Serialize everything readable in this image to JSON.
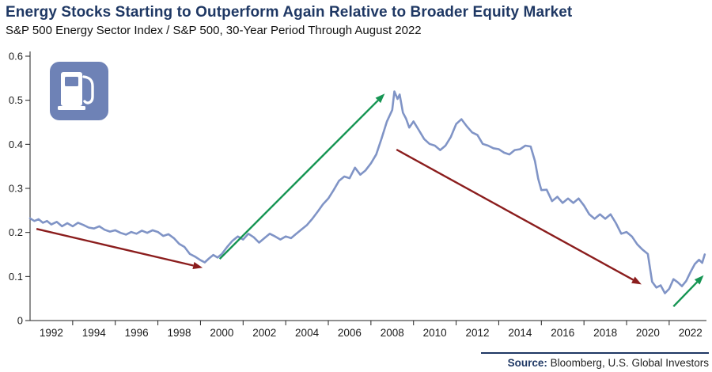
{
  "header": {
    "title": "Energy Stocks Starting to Outperform Again Relative to Broader Equity Market",
    "subtitle": "S&P 500 Energy Sector Index / S&P 500, 30-Year Period Through August 2022"
  },
  "footer": {
    "source_label": "Source:",
    "source_text": " Bloomberg, U.S. Global Investors"
  },
  "colors": {
    "title": "#1f3864",
    "line": "#8094c6",
    "down_arrow": "#8b1d1d",
    "up_arrow": "#169553",
    "icon_bg": "#6e82b6",
    "axis": "#222222"
  },
  "icon": {
    "name": "gas-pump-icon"
  },
  "chart_data": {
    "type": "line",
    "title": "Energy Stocks Starting to Outperform Again Relative to Broader Equity Market",
    "subtitle": "S&P 500 Energy Sector Index / S&P 500, 30-Year Period Through August 2022",
    "xlabel": "",
    "ylabel": "",
    "series_name": "S&P 500 Energy Sector Index / S&P 500",
    "xlim": [
      1991,
      2022.75
    ],
    "ylim": [
      0,
      0.6
    ],
    "yticks": [
      0,
      0.1,
      0.2,
      0.3,
      0.4,
      0.5,
      0.6
    ],
    "xticks": [
      1992,
      1994,
      1996,
      1998,
      2000,
      2002,
      2004,
      2006,
      2008,
      2010,
      2012,
      2014,
      2016,
      2018,
      2020,
      2022
    ],
    "xticks_minor": [
      1993,
      1995,
      1997,
      1999,
      2001,
      2003,
      2005,
      2007,
      2009,
      2011,
      2013,
      2015,
      2017,
      2019,
      2021
    ],
    "grid": false,
    "legend": false,
    "points": [
      [
        1991.0,
        0.232
      ],
      [
        1991.2,
        0.226
      ],
      [
        1991.4,
        0.23
      ],
      [
        1991.6,
        0.222
      ],
      [
        1991.8,
        0.226
      ],
      [
        1992.0,
        0.218
      ],
      [
        1992.25,
        0.224
      ],
      [
        1992.5,
        0.214
      ],
      [
        1992.75,
        0.221
      ],
      [
        1993.0,
        0.214
      ],
      [
        1993.25,
        0.222
      ],
      [
        1993.5,
        0.217
      ],
      [
        1993.75,
        0.211
      ],
      [
        1994.0,
        0.209
      ],
      [
        1994.25,
        0.214
      ],
      [
        1994.5,
        0.206
      ],
      [
        1994.75,
        0.202
      ],
      [
        1995.0,
        0.205
      ],
      [
        1995.25,
        0.199
      ],
      [
        1995.5,
        0.195
      ],
      [
        1995.75,
        0.201
      ],
      [
        1996.0,
        0.197
      ],
      [
        1996.25,
        0.204
      ],
      [
        1996.5,
        0.199
      ],
      [
        1996.75,
        0.205
      ],
      [
        1997.0,
        0.201
      ],
      [
        1997.25,
        0.192
      ],
      [
        1997.5,
        0.196
      ],
      [
        1997.75,
        0.187
      ],
      [
        1998.0,
        0.174
      ],
      [
        1998.25,
        0.167
      ],
      [
        1998.5,
        0.151
      ],
      [
        1998.75,
        0.145
      ],
      [
        1999.0,
        0.137
      ],
      [
        1999.2,
        0.132
      ],
      [
        1999.4,
        0.141
      ],
      [
        1999.6,
        0.149
      ],
      [
        1999.8,
        0.143
      ],
      [
        2000.0,
        0.151
      ],
      [
        2000.25,
        0.167
      ],
      [
        2000.5,
        0.181
      ],
      [
        2000.75,
        0.191
      ],
      [
        2001.0,
        0.184
      ],
      [
        2001.25,
        0.197
      ],
      [
        2001.5,
        0.189
      ],
      [
        2001.75,
        0.177
      ],
      [
        2002.0,
        0.187
      ],
      [
        2002.25,
        0.197
      ],
      [
        2002.5,
        0.191
      ],
      [
        2002.75,
        0.184
      ],
      [
        2003.0,
        0.191
      ],
      [
        2003.25,
        0.187
      ],
      [
        2003.5,
        0.197
      ],
      [
        2003.75,
        0.207
      ],
      [
        2004.0,
        0.217
      ],
      [
        2004.25,
        0.231
      ],
      [
        2004.5,
        0.247
      ],
      [
        2004.75,
        0.264
      ],
      [
        2005.0,
        0.277
      ],
      [
        2005.25,
        0.296
      ],
      [
        2005.5,
        0.317
      ],
      [
        2005.75,
        0.327
      ],
      [
        2006.0,
        0.323
      ],
      [
        2006.25,
        0.347
      ],
      [
        2006.5,
        0.331
      ],
      [
        2006.75,
        0.341
      ],
      [
        2007.0,
        0.357
      ],
      [
        2007.25,
        0.377
      ],
      [
        2007.5,
        0.413
      ],
      [
        2007.75,
        0.452
      ],
      [
        2008.0,
        0.478
      ],
      [
        2008.1,
        0.52
      ],
      [
        2008.25,
        0.503
      ],
      [
        2008.35,
        0.513
      ],
      [
        2008.5,
        0.472
      ],
      [
        2008.65,
        0.458
      ],
      [
        2008.8,
        0.438
      ],
      [
        2009.0,
        0.452
      ],
      [
        2009.25,
        0.432
      ],
      [
        2009.5,
        0.412
      ],
      [
        2009.75,
        0.401
      ],
      [
        2010.0,
        0.397
      ],
      [
        2010.25,
        0.387
      ],
      [
        2010.5,
        0.397
      ],
      [
        2010.75,
        0.417
      ],
      [
        2011.0,
        0.446
      ],
      [
        2011.25,
        0.457
      ],
      [
        2011.5,
        0.441
      ],
      [
        2011.75,
        0.427
      ],
      [
        2012.0,
        0.421
      ],
      [
        2012.25,
        0.401
      ],
      [
        2012.5,
        0.397
      ],
      [
        2012.75,
        0.391
      ],
      [
        2013.0,
        0.389
      ],
      [
        2013.25,
        0.381
      ],
      [
        2013.5,
        0.377
      ],
      [
        2013.75,
        0.387
      ],
      [
        2014.0,
        0.389
      ],
      [
        2014.25,
        0.397
      ],
      [
        2014.5,
        0.395
      ],
      [
        2014.7,
        0.362
      ],
      [
        2014.85,
        0.322
      ],
      [
        2015.0,
        0.296
      ],
      [
        2015.25,
        0.297
      ],
      [
        2015.5,
        0.271
      ],
      [
        2015.75,
        0.281
      ],
      [
        2016.0,
        0.267
      ],
      [
        2016.25,
        0.277
      ],
      [
        2016.5,
        0.267
      ],
      [
        2016.75,
        0.277
      ],
      [
        2017.0,
        0.261
      ],
      [
        2017.25,
        0.241
      ],
      [
        2017.5,
        0.231
      ],
      [
        2017.75,
        0.241
      ],
      [
        2018.0,
        0.231
      ],
      [
        2018.25,
        0.241
      ],
      [
        2018.5,
        0.221
      ],
      [
        2018.75,
        0.197
      ],
      [
        2019.0,
        0.201
      ],
      [
        2019.25,
        0.191
      ],
      [
        2019.5,
        0.173
      ],
      [
        2019.75,
        0.161
      ],
      [
        2020.0,
        0.151
      ],
      [
        2020.2,
        0.088
      ],
      [
        2020.4,
        0.075
      ],
      [
        2020.6,
        0.08
      ],
      [
        2020.8,
        0.062
      ],
      [
        2021.0,
        0.072
      ],
      [
        2021.2,
        0.094
      ],
      [
        2021.4,
        0.087
      ],
      [
        2021.6,
        0.078
      ],
      [
        2021.8,
        0.09
      ],
      [
        2022.0,
        0.11
      ],
      [
        2022.2,
        0.128
      ],
      [
        2022.4,
        0.138
      ],
      [
        2022.55,
        0.131
      ],
      [
        2022.67,
        0.15
      ]
    ],
    "annotations": [
      {
        "type": "arrow",
        "direction": "down",
        "color": "#8b1d1d",
        "x1": 1991.3,
        "y1": 0.208,
        "x2": 1999.1,
        "y2": 0.12
      },
      {
        "type": "arrow",
        "direction": "up",
        "color": "#169553",
        "x1": 1999.9,
        "y1": 0.14,
        "x2": 2007.65,
        "y2": 0.515
      },
      {
        "type": "arrow",
        "direction": "down",
        "color": "#8b1d1d",
        "x1": 2008.2,
        "y1": 0.388,
        "x2": 2019.7,
        "y2": 0.082
      },
      {
        "type": "arrow",
        "direction": "up",
        "color": "#169553",
        "x1": 2021.2,
        "y1": 0.032,
        "x2": 2022.62,
        "y2": 0.103
      }
    ]
  }
}
